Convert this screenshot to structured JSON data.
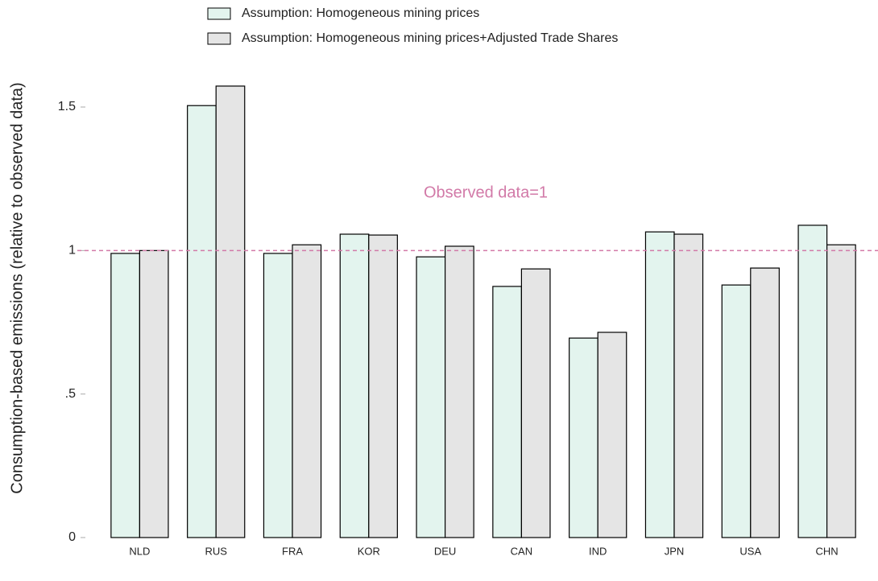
{
  "chart_data": {
    "type": "bar",
    "y_label": "Consumption-based emissions (relative to observed data)",
    "categories": [
      "NLD",
      "RUS",
      "FRA",
      "KOR",
      "DEU",
      "CAN",
      "IND",
      "JPN",
      "USA",
      "CHN"
    ],
    "series": [
      {
        "name": "Assumption: Homogeneous mining prices",
        "color": "#e3f4ee",
        "values": [
          0.99,
          1.505,
          0.99,
          1.057,
          0.978,
          0.875,
          0.695,
          1.065,
          0.88,
          1.088
        ]
      },
      {
        "name": "Assumption: Homogeneous mining prices+Adjusted Trade Shares",
        "color": "#e5e5e5",
        "values": [
          1.0,
          1.573,
          1.02,
          1.054,
          1.015,
          0.936,
          0.715,
          1.057,
          0.939,
          1.02
        ]
      }
    ],
    "reference_line": {
      "value": 1,
      "label": "Observed data=1",
      "color": "#d27aa8"
    },
    "ylim": [
      0,
      1.5
    ],
    "yticks": [
      0,
      {
        "value": 0.5,
        "label": ".5"
      },
      1,
      1.5
    ]
  }
}
